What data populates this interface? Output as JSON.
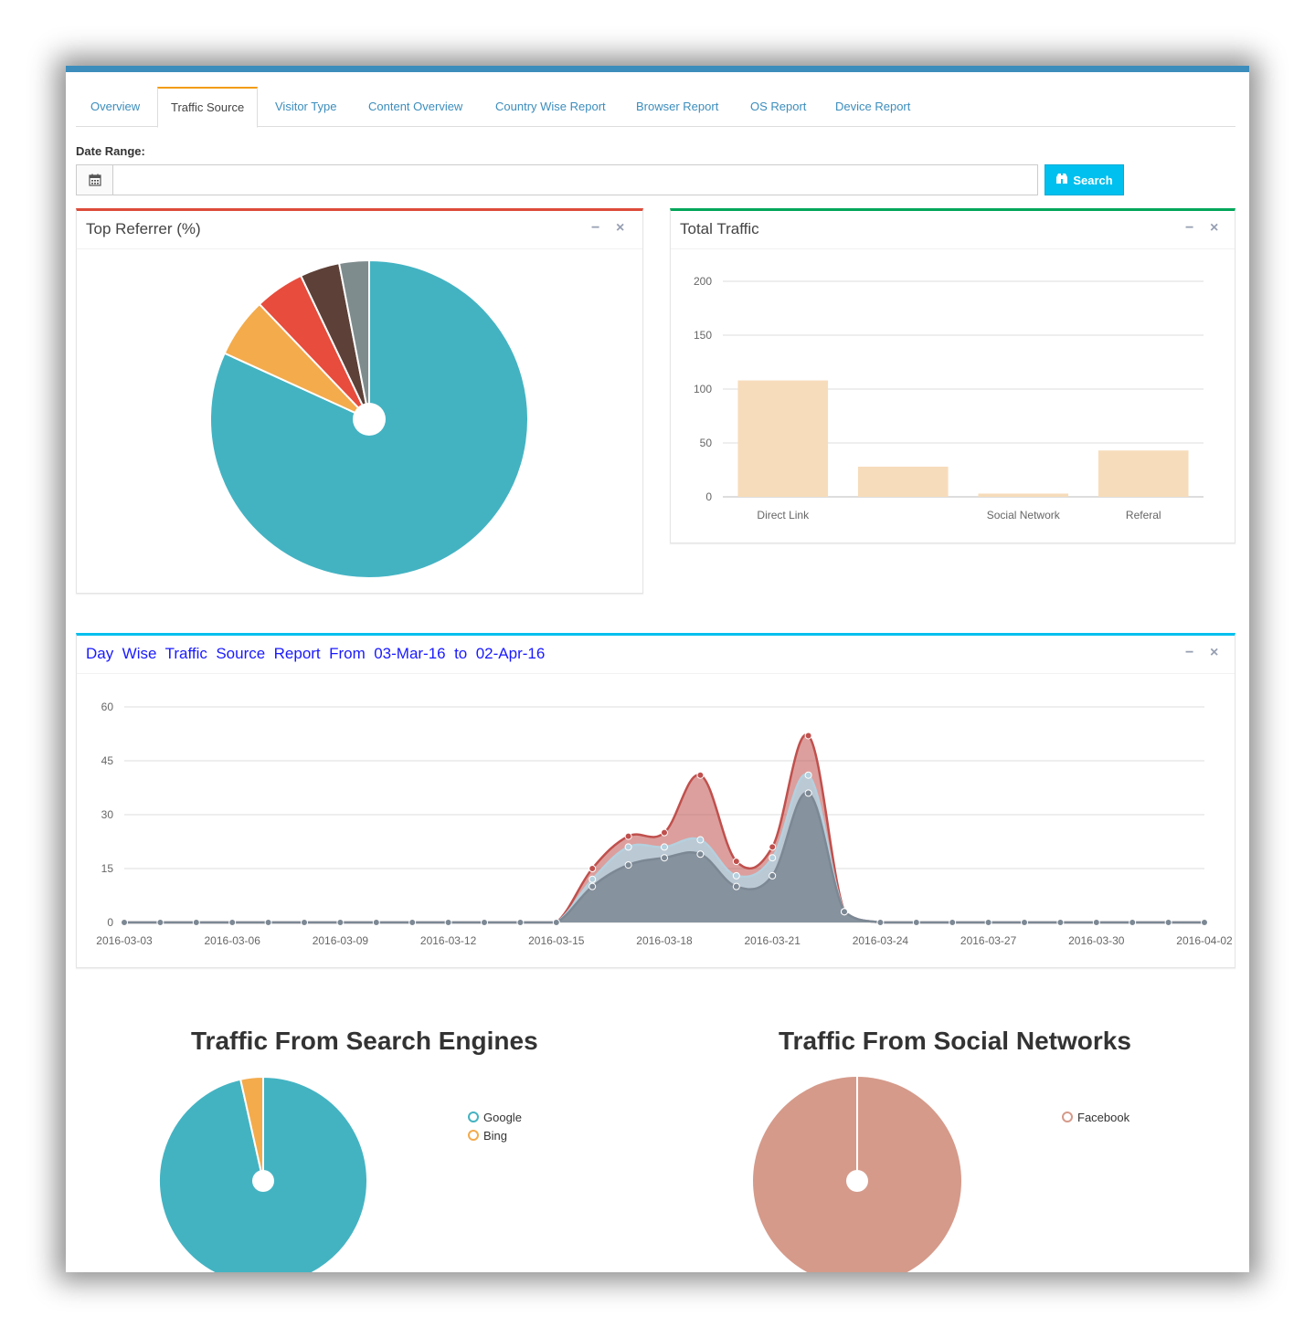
{
  "tabs": [
    {
      "label": "Overview",
      "active": false
    },
    {
      "label": "Traffic Source",
      "active": true
    },
    {
      "label": "Visitor Type",
      "active": false
    },
    {
      "label": "Content Overview",
      "active": false
    },
    {
      "label": "Country Wise Report",
      "active": false
    },
    {
      "label": "Browser Report",
      "active": false
    },
    {
      "label": "OS Report",
      "active": false
    },
    {
      "label": "Device Report",
      "active": false
    }
  ],
  "date_range": {
    "label": "Date Range:",
    "value": "",
    "icon": "calendar-icon"
  },
  "search_button": {
    "label": "Search",
    "icon": "binoculars-icon"
  },
  "box_tools": {
    "minimize": "−",
    "close": "×"
  },
  "colors": {
    "top_bar": "#3c8dbc",
    "referrer_border": "#dd4b39",
    "total_border": "#00a65a",
    "daywise_border": "#00c0ef",
    "teal": "#43b3c2",
    "orange": "#f3ab4c",
    "red": "#e74c3c",
    "brown": "#5d4037",
    "gray": "#7f8c8d",
    "bar": "#f7dcbb",
    "salmon": "#d59a8a"
  },
  "top_referrer": {
    "title": "Top Referrer (%)",
    "chart_data": {
      "type": "pie",
      "slices": [
        {
          "value": 81.0,
          "color": "#43b3c2"
        },
        {
          "value": 6.0,
          "color": "#f3ab4c"
        },
        {
          "value": 5.0,
          "color": "#e74c3c"
        },
        {
          "value": 4.0,
          "color": "#5d4037"
        },
        {
          "value": 3.0,
          "color": "#7f8c8d"
        }
      ]
    }
  },
  "total_traffic": {
    "title": "Total Traffic",
    "chart_data": {
      "type": "bar",
      "categories": [
        "Direct Link",
        "",
        "Social Network",
        "Referal"
      ],
      "values": [
        108,
        28,
        3,
        43
      ],
      "yticks": [
        0,
        50,
        100,
        150,
        200
      ],
      "ylim": [
        0,
        200
      ],
      "grid": true
    }
  },
  "day_wise": {
    "title": "Day  Wise  Traffic  Source  Report  From  03-Mar-16  to  02-Apr-16",
    "chart_data": {
      "type": "area",
      "x": [
        "2016-03-03",
        "2016-03-04",
        "2016-03-05",
        "2016-03-06",
        "2016-03-07",
        "2016-03-08",
        "2016-03-09",
        "2016-03-10",
        "2016-03-11",
        "2016-03-12",
        "2016-03-13",
        "2016-03-14",
        "2016-03-15",
        "2016-03-16",
        "2016-03-17",
        "2016-03-18",
        "2016-03-19",
        "2016-03-20",
        "2016-03-21",
        "2016-03-22",
        "2016-03-23",
        "2016-03-24",
        "2016-03-25",
        "2016-03-26",
        "2016-03-27",
        "2016-03-28",
        "2016-03-29",
        "2016-03-30",
        "2016-03-31",
        "2016-04-01",
        "2016-04-02"
      ],
      "xticks": [
        "2016-03-03",
        "2016-03-06",
        "2016-03-09",
        "2016-03-12",
        "2016-03-15",
        "2016-03-18",
        "2016-03-21",
        "2016-03-24",
        "2016-03-27",
        "2016-03-30",
        "2016-04-02"
      ],
      "yticks": [
        0,
        15,
        30,
        45,
        60
      ],
      "ylim": [
        0,
        60
      ],
      "stacked": true,
      "series": [
        {
          "color": "#7c8894",
          "values": [
            0,
            0,
            0,
            0,
            0,
            0,
            0,
            0,
            0,
            0,
            0,
            0,
            0,
            10,
            16,
            18,
            19,
            10,
            13,
            36,
            3,
            0,
            0,
            0,
            0,
            0,
            0,
            0,
            0,
            0,
            0
          ]
        },
        {
          "color": "#b5d0de",
          "values": [
            0,
            0,
            0,
            0,
            0,
            0,
            0,
            0,
            0,
            0,
            0,
            0,
            0,
            2,
            5,
            3,
            4,
            3,
            5,
            5,
            0,
            0,
            0,
            0,
            0,
            0,
            0,
            0,
            0,
            0,
            0
          ]
        },
        {
          "color": "#c0504d",
          "values": [
            0,
            0,
            0,
            0,
            0,
            0,
            0,
            0,
            0,
            0,
            0,
            0,
            0,
            3,
            3,
            4,
            18,
            4,
            3,
            11,
            0,
            0,
            0,
            0,
            0,
            0,
            0,
            0,
            0,
            0,
            0
          ]
        }
      ]
    }
  },
  "search_engines": {
    "title": "Traffic From Search Engines",
    "chart_data": {
      "type": "pie",
      "slices": [
        {
          "label": "Google",
          "value": 96.5,
          "color": "#43b3c2"
        },
        {
          "label": "Bing",
          "value": 3.5,
          "color": "#f3ab4c"
        }
      ]
    }
  },
  "social_networks": {
    "title": "Traffic From Social Networks",
    "chart_data": {
      "type": "pie",
      "slices": [
        {
          "label": "Facebook",
          "value": 100,
          "color": "#d59a8a"
        }
      ]
    }
  }
}
